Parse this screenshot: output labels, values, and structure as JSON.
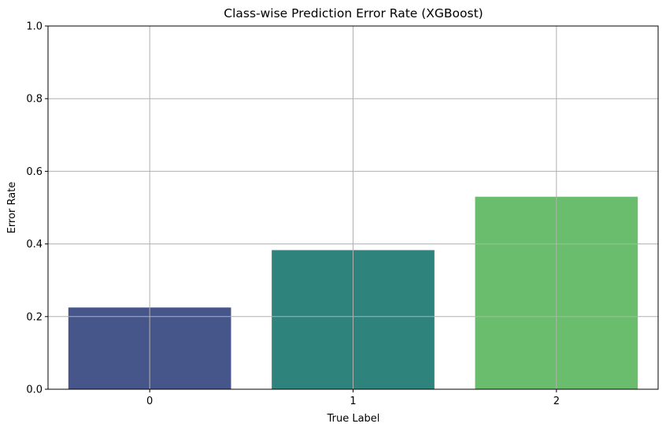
{
  "chart_data": {
    "type": "bar",
    "title": "Class-wise Prediction Error Rate (XGBoost)",
    "xlabel": "True Label",
    "ylabel": "Error Rate",
    "categories": [
      "0",
      "1",
      "2"
    ],
    "values": [
      0.225,
      0.383,
      0.53
    ],
    "colors": [
      "#46568a",
      "#2e837d",
      "#6bbd6e"
    ],
    "ylim": [
      0,
      1
    ],
    "yticks": [
      0.0,
      0.2,
      0.4,
      0.6,
      0.8,
      1.0
    ],
    "ytick_labels": [
      "0.0",
      "0.2",
      "0.4",
      "0.6",
      "0.8",
      "1.0"
    ],
    "grid": true,
    "grid_color": "#b0b0b0",
    "legend": "none"
  }
}
